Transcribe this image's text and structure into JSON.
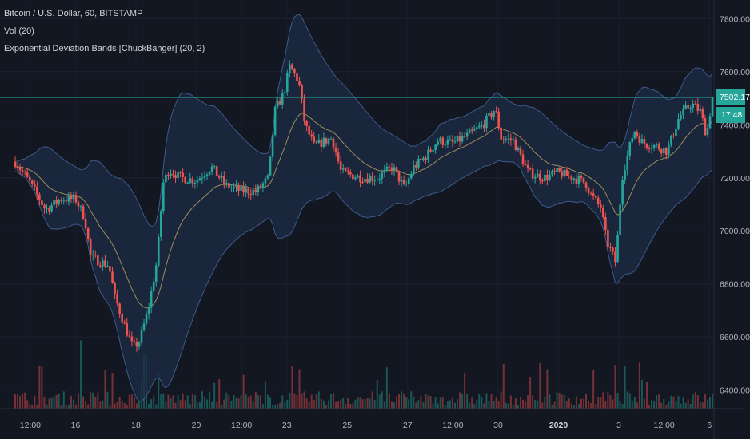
{
  "legend": {
    "symbol": "Bitcoin / U.S. Dollar, 60, BITSTAMP",
    "volume": "Vol (20)",
    "indicator": "Exponential Deviation Bands [ChuckBanger] (20, 2)"
  },
  "price_badge": "7502.17",
  "countdown_badge": "17:48",
  "colors": {
    "background": "#131722",
    "up": "#26a69a",
    "down": "#ef5350",
    "band_fill": "#1c2c46",
    "band_line": "#3d5a8a",
    "basis": "#a08c5a",
    "last_price_line": "#26a69a"
  },
  "chart_data": {
    "type": "candlestick",
    "interval": "60",
    "exchange": "BITSTAMP",
    "ylim": [
      6330,
      7870
    ],
    "y_ticks": [
      "7800.00",
      "7600.00",
      "7400.00",
      "7200.00",
      "7000.00",
      "6800.00",
      "6600.00",
      "6400.00"
    ],
    "y_tick_values": [
      7800,
      7600,
      7400,
      7200,
      7000,
      6800,
      6600,
      6400
    ],
    "x_ticks": [
      "12:00",
      "16",
      "18",
      "20",
      "12:00",
      "23",
      "25",
      "27",
      "12:00",
      "30",
      "2020",
      "3",
      "12:00",
      "6"
    ],
    "x_tick_positions": [
      0.5,
      2,
      4,
      6,
      7.5,
      9,
      11,
      13,
      14.5,
      16,
      18,
      20,
      21.5,
      23
    ],
    "x_tick_bold": [
      false,
      false,
      false,
      false,
      false,
      false,
      false,
      false,
      false,
      false,
      true,
      false,
      false,
      false
    ],
    "x_range_days": [
      0,
      23.1
    ],
    "last_price": 7502.17,
    "close_keyframes": [
      [
        0,
        7260
      ],
      [
        0.5,
        7180
      ],
      [
        1.0,
        7080
      ],
      [
        1.5,
        7120
      ],
      [
        2.0,
        7120
      ],
      [
        2.3,
        7050
      ],
      [
        2.5,
        6900
      ],
      [
        2.9,
        6880
      ],
      [
        3.1,
        6870
      ],
      [
        3.3,
        6750
      ],
      [
        3.6,
        6650
      ],
      [
        3.9,
        6560
      ],
      [
        4.1,
        6580
      ],
      [
        4.4,
        6700
      ],
      [
        4.7,
        6890
      ],
      [
        4.9,
        7180
      ],
      [
        5.1,
        7230
      ],
      [
        5.5,
        7200
      ],
      [
        6.0,
        7190
      ],
      [
        6.5,
        7240
      ],
      [
        7.0,
        7170
      ],
      [
        7.5,
        7150
      ],
      [
        8.0,
        7150
      ],
      [
        8.4,
        7200
      ],
      [
        8.6,
        7450
      ],
      [
        8.9,
        7520
      ],
      [
        9.1,
        7620
      ],
      [
        9.4,
        7560
      ],
      [
        9.6,
        7400
      ],
      [
        9.9,
        7320
      ],
      [
        10.5,
        7350
      ],
      [
        10.8,
        7220
      ],
      [
        11.5,
        7200
      ],
      [
        12.0,
        7200
      ],
      [
        12.5,
        7240
      ],
      [
        12.9,
        7160
      ],
      [
        13.2,
        7240
      ],
      [
        13.6,
        7280
      ],
      [
        14.0,
        7340
      ],
      [
        14.5,
        7330
      ],
      [
        15.0,
        7360
      ],
      [
        15.5,
        7400
      ],
      [
        15.9,
        7460
      ],
      [
        16.1,
        7350
      ],
      [
        16.5,
        7340
      ],
      [
        17.0,
        7220
      ],
      [
        17.5,
        7200
      ],
      [
        18.0,
        7220
      ],
      [
        18.5,
        7200
      ],
      [
        18.9,
        7180
      ],
      [
        19.1,
        7130
      ],
      [
        19.4,
        7090
      ],
      [
        19.6,
        6960
      ],
      [
        19.9,
        6880
      ],
      [
        20.1,
        7200
      ],
      [
        20.5,
        7380
      ],
      [
        20.8,
        7330
      ],
      [
        21.2,
        7320
      ],
      [
        21.6,
        7300
      ],
      [
        22.0,
        7430
      ],
      [
        22.4,
        7480
      ],
      [
        22.7,
        7450
      ],
      [
        22.9,
        7360
      ],
      [
        23.1,
        7502
      ]
    ],
    "volume_spikes": [
      [
        2.2,
        0.95
      ],
      [
        3.2,
        0.5
      ],
      [
        4.3,
        0.75
      ],
      [
        9.4,
        0.55
      ],
      [
        17.6,
        0.55
      ],
      [
        20.2,
        0.6
      ],
      [
        14.9,
        0.5
      ],
      [
        12.0,
        0.4
      ]
    ],
    "indicator": "Exponential Deviation Bands",
    "indicator_params": [
      20,
      2
    ]
  }
}
